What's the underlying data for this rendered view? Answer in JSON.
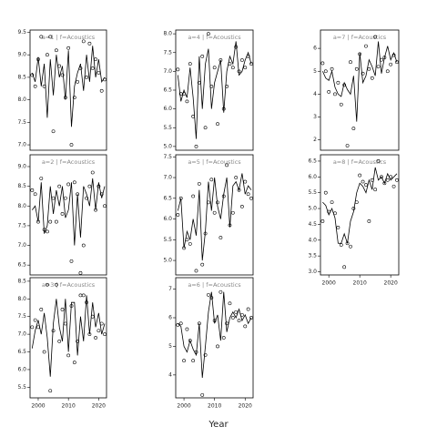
{
  "xlabel": "Year",
  "chart_data": [
    {
      "type": "line_scatter",
      "title": "a=1 | f=Acoustics",
      "x": [
        1998,
        1999,
        2000,
        2001,
        2002,
        2003,
        2004,
        2005,
        2006,
        2007,
        2008,
        2009,
        2010,
        2011,
        2012,
        2013,
        2014,
        2015,
        2016,
        2017,
        2018,
        2019,
        2020,
        2021,
        2022
      ],
      "line_values": [
        8.6,
        8.4,
        8.95,
        8.3,
        8.8,
        7.6,
        8.9,
        8.1,
        9.0,
        8.5,
        8.75,
        8.0,
        9.1,
        7.4,
        8.3,
        8.6,
        8.8,
        8.2,
        9.0,
        8.4,
        9.2,
        8.5,
        8.9,
        8.4,
        8.5
      ],
      "point_values": [
        8.55,
        8.3,
        8.9,
        9.4,
        8.3,
        9.0,
        9.4,
        7.3,
        9.1,
        8.75,
        8.55,
        8.05,
        9.15,
        7.0,
        8.05,
        8.4,
        8.7,
        9.3,
        8.5,
        9.25,
        8.7,
        8.9,
        8.6,
        8.2,
        8.45
      ],
      "xlim": [
        1997.3,
        2022.6
      ],
      "ylim": [
        6.88,
        9.55
      ],
      "yticks": [
        {
          "value": 7,
          "label": "7.0"
        },
        7.5,
        {
          "value": 8,
          "label": "8.0"
        },
        8.5,
        {
          "value": 9,
          "label": "9.0"
        },
        9.5
      ],
      "color": "#000000"
    },
    {
      "type": "line_scatter",
      "title": "a=2 | f=Acoustics",
      "x": [
        1998,
        1999,
        2000,
        2001,
        2002,
        2003,
        2004,
        2005,
        2006,
        2007,
        2008,
        2009,
        2010,
        2011,
        2012,
        2013,
        2014,
        2015,
        2016,
        2017,
        2018,
        2019,
        2020,
        2021,
        2022
      ],
      "line_values": [
        7.9,
        8.0,
        7.6,
        8.6,
        7.3,
        7.5,
        8.5,
        7.8,
        8.4,
        8.0,
        8.5,
        7.7,
        7.9,
        8.6,
        7.0,
        8.3,
        7.2,
        8.5,
        8.3,
        8.0,
        8.7,
        7.9,
        8.6,
        8.2,
        8.5
      ],
      "point_values": [
        8.4,
        8.3,
        7.6,
        8.7,
        7.4,
        7.35,
        7.6,
        8.2,
        7.6,
        8.5,
        7.8,
        8.2,
        8.55,
        6.6,
        8.6,
        8.3,
        6.3,
        7.0,
        8.2,
        8.5,
        8.85,
        7.9,
        8.5,
        8.3,
        8.0
      ],
      "xlim": [
        1997.3,
        2022.6
      ],
      "ylim": [
        6.25,
        9.3
      ],
      "yticks": [
        6.5,
        {
          "value": 7,
          "label": "7.0"
        },
        7.5,
        {
          "value": 8,
          "label": "8.0"
        },
        8.5,
        {
          "value": 9,
          "label": "9.0"
        }
      ],
      "color": "#000000"
    },
    {
      "type": "line_scatter",
      "title": "a=3 | f=Acoustics",
      "x": [
        1998,
        1999,
        2000,
        2001,
        2002,
        2003,
        2004,
        2005,
        2006,
        2007,
        2008,
        2009,
        2010,
        2011,
        2012,
        2013,
        2014,
        2015,
        2016,
        2017,
        2018,
        2019,
        2020,
        2021,
        2022
      ],
      "line_values": [
        6.6,
        7.1,
        7.4,
        7.0,
        7.6,
        6.9,
        5.8,
        7.3,
        8.0,
        7.2,
        6.8,
        8.0,
        6.5,
        7.9,
        7.9,
        6.4,
        7.5,
        6.8,
        8.1,
        7.0,
        7.9,
        7.2,
        7.6,
        7.0,
        7.3
      ],
      "point_values": [
        7.2,
        7.4,
        7.2,
        7.7,
        6.5,
        8.4,
        5.4,
        7.1,
        8.4,
        6.8,
        7.7,
        7.3,
        6.4,
        7.8,
        6.2,
        6.8,
        8.1,
        8.1,
        7.9,
        7.0,
        7.5,
        6.9,
        7.1,
        7.3,
        7.0
      ],
      "xlim": [
        1997.3,
        2022.6
      ],
      "ylim": [
        5.2,
        8.6
      ],
      "xticks": [
        2000,
        2010,
        2020
      ],
      "yticks": [
        5.5,
        {
          "value": 6,
          "label": "6.0"
        },
        6.5,
        {
          "value": 7,
          "label": "7.0"
        },
        7.5,
        {
          "value": 8,
          "label": "8.0"
        },
        8.5
      ],
      "color": "#000000"
    },
    {
      "type": "line_scatter",
      "title": "a=4 | f=Acoustics",
      "x": [
        1998,
        1999,
        2000,
        2001,
        2002,
        2003,
        2004,
        2005,
        2006,
        2007,
        2008,
        2009,
        2010,
        2011,
        2012,
        2013,
        2014,
        2015,
        2016,
        2017,
        2018,
        2019,
        2020,
        2021,
        2022
      ],
      "line_values": [
        6.9,
        6.2,
        6.5,
        6.3,
        7.1,
        6.3,
        5.2,
        7.4,
        6.0,
        7.2,
        7.6,
        6.0,
        6.7,
        7.0,
        7.3,
        5.9,
        7.0,
        7.4,
        7.2,
        7.8,
        6.9,
        7.0,
        7.3,
        7.5,
        7.2
      ],
      "point_values": [
        7.05,
        6.4,
        6.4,
        6.2,
        7.2,
        5.8,
        5.0,
        6.7,
        7.4,
        5.5,
        8.0,
        6.6,
        7.1,
        5.6,
        7.3,
        6.0,
        6.6,
        7.2,
        7.1,
        7.65,
        7.0,
        7.3,
        7.1,
        7.4,
        7.2
      ],
      "xlim": [
        1997.3,
        2022.6
      ],
      "ylim": [
        4.9,
        8.1
      ],
      "yticks": [
        {
          "value": 5,
          "label": "5.0"
        },
        5.5,
        {
          "value": 6,
          "label": "6.0"
        },
        6.5,
        {
          "value": 7,
          "label": "7.0"
        },
        7.5,
        {
          "value": 8,
          "label": "8.0"
        }
      ],
      "color": "#000000"
    },
    {
      "type": "line_scatter",
      "title": "a=5 | f=Acoustics",
      "x": [
        1998,
        1999,
        2000,
        2001,
        2002,
        2003,
        2004,
        2005,
        2006,
        2007,
        2008,
        2009,
        2010,
        2011,
        2012,
        2013,
        2014,
        2015,
        2016,
        2017,
        2018,
        2019,
        2020,
        2021,
        2022
      ],
      "line_values": [
        6.2,
        6.5,
        5.3,
        5.7,
        5.5,
        6.0,
        5.6,
        6.7,
        5.0,
        5.7,
        6.9,
        6.2,
        7.0,
        6.3,
        6.0,
        6.6,
        7.0,
        5.8,
        6.8,
        6.9,
        6.7,
        7.1,
        6.6,
        6.8,
        6.7
      ],
      "point_values": [
        6.1,
        6.5,
        5.3,
        5.5,
        5.4,
        6.55,
        4.75,
        6.85,
        4.9,
        5.65,
        6.4,
        6.95,
        6.15,
        6.4,
        5.55,
        6.55,
        7.3,
        5.85,
        6.15,
        7.0,
        6.7,
        6.3,
        6.9,
        6.6,
        6.5
      ],
      "xlim": [
        1997.3,
        2022.6
      ],
      "ylim": [
        4.65,
        7.55
      ],
      "yticks": [
        {
          "value": 5,
          "label": "5.0"
        },
        5.5,
        {
          "value": 6,
          "label": "6.0"
        },
        6.5,
        {
          "value": 7,
          "label": "7.0"
        },
        7.5
      ],
      "color": "#000000"
    },
    {
      "type": "line_scatter",
      "title": "a=6 | f=Acoustics",
      "x": [
        1998,
        1999,
        2000,
        2001,
        2002,
        2003,
        2004,
        2005,
        2006,
        2007,
        2008,
        2009,
        2010,
        2011,
        2012,
        2013,
        2014,
        2015,
        2016,
        2017,
        2018,
        2019,
        2020,
        2021,
        2022
      ],
      "line_values": [
        5.8,
        5.7,
        5.0,
        4.8,
        5.2,
        4.9,
        4.7,
        5.8,
        3.9,
        5.0,
        6.2,
        6.9,
        5.8,
        6.1,
        5.2,
        6.9,
        5.5,
        6.0,
        6.2,
        6.0,
        6.3,
        5.9,
        6.1,
        5.8,
        6.0
      ],
      "point_values": [
        5.75,
        5.8,
        4.5,
        5.6,
        5.2,
        4.5,
        4.8,
        5.8,
        3.3,
        4.7,
        6.8,
        6.7,
        5.9,
        5.0,
        6.9,
        5.3,
        5.8,
        6.5,
        6.0,
        6.2,
        5.9,
        6.1,
        5.7,
        6.3,
        6.0
      ],
      "xlim": [
        1997.3,
        2022.6
      ],
      "ylim": [
        3.2,
        7.4
      ],
      "xticks": [
        2000,
        2010,
        2020
      ],
      "yticks": [
        4,
        5,
        6,
        7
      ],
      "color": "#000000"
    },
    {
      "type": "line_scatter",
      "title": "a=7 | f=Acoustics",
      "x": [
        1998,
        1999,
        2000,
        2001,
        2002,
        2003,
        2004,
        2005,
        2006,
        2007,
        2008,
        2009,
        2010,
        2011,
        2012,
        2013,
        2014,
        2015,
        2016,
        2017,
        2018,
        2019,
        2020,
        2021,
        2022
      ],
      "line_values": [
        5.0,
        4.7,
        4.6,
        5.0,
        4.3,
        4.0,
        3.9,
        4.5,
        4.2,
        4.0,
        4.8,
        2.8,
        5.8,
        4.5,
        4.8,
        5.5,
        5.2,
        4.8,
        6.3,
        4.9,
        5.6,
        6.1,
        5.5,
        5.8,
        5.4
      ],
      "point_values": [
        5.35,
        5.0,
        4.1,
        5.1,
        4.0,
        4.5,
        3.55,
        4.4,
        1.75,
        5.4,
        2.5,
        5.1,
        5.75,
        4.9,
        6.1,
        5.1,
        4.7,
        6.5,
        5.2,
        5.5,
        5.6,
        5.0,
        5.3,
        5.7,
        5.4
      ],
      "xlim": [
        1997.3,
        2022.6
      ],
      "ylim": [
        1.55,
        6.8
      ],
      "yticks": [
        2,
        3,
        4,
        5,
        6
      ],
      "color": "#000000"
    },
    {
      "type": "line_scatter",
      "title": "a=8 | f=Acoustics",
      "x": [
        1998,
        1999,
        2000,
        2001,
        2002,
        2003,
        2004,
        2005,
        2006,
        2007,
        2008,
        2009,
        2010,
        2011,
        2012,
        2013,
        2014,
        2015,
        2016,
        2017,
        2018,
        2019,
        2020,
        2021,
        2022
      ],
      "line_values": [
        5.2,
        5.1,
        4.8,
        5.0,
        4.7,
        3.9,
        3.9,
        4.2,
        3.9,
        4.6,
        4.9,
        5.5,
        5.8,
        5.7,
        5.5,
        5.9,
        5.6,
        6.3,
        5.9,
        6.0,
        5.8,
        6.1,
        5.9,
        6.0,
        6.1
      ],
      "point_values": [
        4.6,
        5.5,
        4.9,
        5.2,
        4.85,
        4.4,
        3.85,
        3.15,
        3.9,
        3.8,
        5.0,
        5.2,
        6.05,
        5.85,
        5.75,
        4.6,
        5.9,
        5.6,
        6.5,
        6.0,
        5.8,
        5.9,
        6.0,
        5.7,
        5.9
      ],
      "xlim": [
        1997.3,
        2022.6
      ],
      "ylim": [
        2.9,
        6.7
      ],
      "xticks": [
        2000,
        2010,
        2020
      ],
      "yticks": [
        {
          "value": 3,
          "label": "3.0"
        },
        3.5,
        {
          "value": 4,
          "label": "4.0"
        },
        4.5,
        {
          "value": 5,
          "label": "5.0"
        },
        5.5,
        {
          "value": 6,
          "label": "6.0"
        },
        6.5
      ],
      "color": "#000000"
    }
  ]
}
